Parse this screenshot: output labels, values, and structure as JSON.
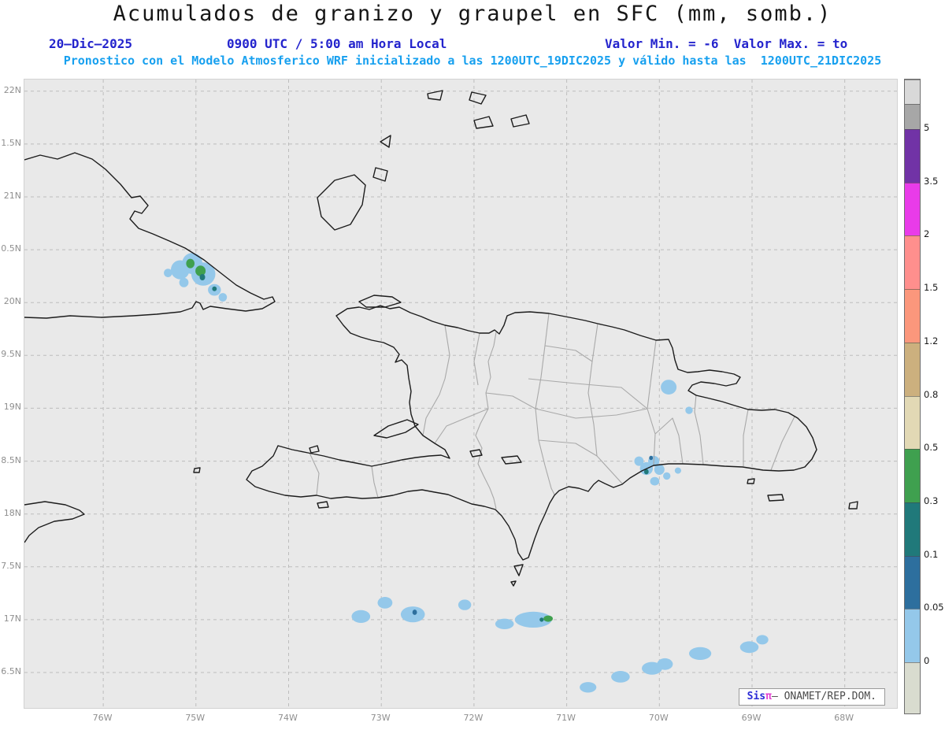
{
  "header": {
    "title": "Acumulados de granizo y graupel en SFC (mm, somb.)",
    "date": "20–Dic–2025",
    "time": "0900 UTC / 5:00 am Hora Local",
    "minmax": "Valor Min. = -6  Valor Max. = to",
    "forecast": "Pronostico con el Modelo Atmosferico WRF inicializado a las 1200UTC_19DIC2025 y válido hasta las  1200UTC_21DIC2025"
  },
  "axes": {
    "lat_labels": [
      "22N",
      "1.5N",
      "21N",
      "0.5N",
      "20N",
      "9.5N",
      "19N",
      "8.5N",
      "18N",
      "7.5N",
      "17N",
      "6.5N"
    ],
    "lat_values": [
      22,
      21.5,
      21,
      20.5,
      20,
      19.5,
      19,
      18.5,
      18,
      17.5,
      17,
      16.5
    ],
    "lon_labels": [
      "76W",
      "75W",
      "74W",
      "73W",
      "72W",
      "71W",
      "70W",
      "69W",
      "68W"
    ],
    "lon_values": [
      -76,
      -75,
      -74,
      -73,
      -72,
      -71,
      -70,
      -69,
      -68
    ]
  },
  "colorbar": {
    "labels": [
      "5",
      "3.5",
      "2",
      "1.5",
      "1.2",
      "0.8",
      "0.5",
      "0.3",
      "0.1",
      "0.05",
      "0"
    ],
    "segment_colors": [
      "#d9d9d9",
      "#a7a7a7",
      "#7133a6",
      "#e93be9",
      "#ff8f8d",
      "#fb977c",
      "#ccb07e",
      "#e2d9b5",
      "#3fa04f",
      "#20797a",
      "#2d6f9e",
      "#94c8ea",
      "#d9dccf"
    ],
    "level_colors": {
      "0": "#94c8ea",
      "0.05": "#2d6f9e",
      "0.1": "#20797a",
      "0.3": "#3fa04f"
    }
  },
  "credit": {
    "sis": "Sis",
    "pi": "π",
    "rest": "– ONAMET/REP.DOM."
  },
  "chart_data": {
    "type": "map",
    "variable": "Acumulados de granizo y graupel en SFC",
    "units": "mm",
    "projection": {
      "lon_min": -76.85,
      "lon_max": -67.42,
      "lat_min": 16.15,
      "lat_max": 22.11
    },
    "hail_areas": [
      {
        "lon": -75.3,
        "lat": 20.28,
        "rx": 0.045,
        "ry": 0.04,
        "level": "0"
      },
      {
        "lon": -75.17,
        "lat": 20.31,
        "rx": 0.1,
        "ry": 0.09,
        "level": "0"
      },
      {
        "lon": -75.04,
        "lat": 20.37,
        "rx": 0.11,
        "ry": 0.1,
        "level": "0"
      },
      {
        "lon": -74.92,
        "lat": 20.27,
        "rx": 0.13,
        "ry": 0.11,
        "level": "0"
      },
      {
        "lon": -75.13,
        "lat": 20.19,
        "rx": 0.05,
        "ry": 0.045,
        "level": "0"
      },
      {
        "lon": -74.8,
        "lat": 20.12,
        "rx": 0.07,
        "ry": 0.055,
        "level": "0"
      },
      {
        "lon": -74.71,
        "lat": 20.05,
        "rx": 0.045,
        "ry": 0.04,
        "level": "0"
      },
      {
        "lon": -75.06,
        "lat": 20.37,
        "rx": 0.045,
        "ry": 0.045,
        "level": "0.3"
      },
      {
        "lon": -74.95,
        "lat": 20.3,
        "rx": 0.055,
        "ry": 0.05,
        "level": "0.3"
      },
      {
        "lon": -74.93,
        "lat": 20.24,
        "rx": 0.03,
        "ry": 0.03,
        "level": "0.1"
      },
      {
        "lon": -74.8,
        "lat": 20.13,
        "rx": 0.025,
        "ry": 0.022,
        "level": "0.1"
      },
      {
        "lon": -69.9,
        "lat": 19.2,
        "rx": 0.085,
        "ry": 0.07,
        "level": "0"
      },
      {
        "lon": -69.68,
        "lat": 18.98,
        "rx": 0.04,
        "ry": 0.035,
        "level": "0"
      },
      {
        "lon": -70.22,
        "lat": 18.5,
        "rx": 0.05,
        "ry": 0.045,
        "level": "0"
      },
      {
        "lon": -70.14,
        "lat": 18.43,
        "rx": 0.07,
        "ry": 0.06,
        "level": "0"
      },
      {
        "lon": -70.06,
        "lat": 18.5,
        "rx": 0.06,
        "ry": 0.05,
        "level": "0"
      },
      {
        "lon": -70.0,
        "lat": 18.42,
        "rx": 0.055,
        "ry": 0.05,
        "level": "0"
      },
      {
        "lon": -70.05,
        "lat": 18.31,
        "rx": 0.05,
        "ry": 0.04,
        "level": "0"
      },
      {
        "lon": -69.92,
        "lat": 18.36,
        "rx": 0.04,
        "ry": 0.035,
        "level": "0"
      },
      {
        "lon": -69.8,
        "lat": 18.41,
        "rx": 0.035,
        "ry": 0.03,
        "level": "0"
      },
      {
        "lon": -70.14,
        "lat": 18.4,
        "rx": 0.025,
        "ry": 0.025,
        "level": "0.1"
      },
      {
        "lon": -70.09,
        "lat": 18.53,
        "rx": 0.02,
        "ry": 0.02,
        "level": "0.05"
      },
      {
        "lon": -73.22,
        "lat": 17.03,
        "rx": 0.1,
        "ry": 0.06,
        "level": "0"
      },
      {
        "lon": -72.96,
        "lat": 17.16,
        "rx": 0.08,
        "ry": 0.055,
        "level": "0"
      },
      {
        "lon": -72.66,
        "lat": 17.05,
        "rx": 0.13,
        "ry": 0.075,
        "level": "0"
      },
      {
        "lon": -72.64,
        "lat": 17.07,
        "rx": 0.025,
        "ry": 0.025,
        "level": "0.05"
      },
      {
        "lon": -72.1,
        "lat": 17.14,
        "rx": 0.07,
        "ry": 0.05,
        "level": "0"
      },
      {
        "lon": -71.67,
        "lat": 16.96,
        "rx": 0.1,
        "ry": 0.05,
        "level": "0"
      },
      {
        "lon": -71.36,
        "lat": 17.0,
        "rx": 0.2,
        "ry": 0.075,
        "level": "0"
      },
      {
        "lon": -71.2,
        "lat": 17.01,
        "rx": 0.05,
        "ry": 0.03,
        "level": "0.3"
      },
      {
        "lon": -71.27,
        "lat": 17.0,
        "rx": 0.022,
        "ry": 0.02,
        "level": "0.1"
      },
      {
        "lon": -70.77,
        "lat": 16.36,
        "rx": 0.09,
        "ry": 0.05,
        "level": "0"
      },
      {
        "lon": -70.42,
        "lat": 16.46,
        "rx": 0.1,
        "ry": 0.055,
        "level": "0"
      },
      {
        "lon": -70.08,
        "lat": 16.54,
        "rx": 0.11,
        "ry": 0.06,
        "level": "0"
      },
      {
        "lon": -69.94,
        "lat": 16.58,
        "rx": 0.085,
        "ry": 0.055,
        "level": "0"
      },
      {
        "lon": -69.56,
        "lat": 16.68,
        "rx": 0.12,
        "ry": 0.06,
        "level": "0"
      },
      {
        "lon": -69.03,
        "lat": 16.74,
        "rx": 0.1,
        "ry": 0.055,
        "level": "0"
      },
      {
        "lon": -68.89,
        "lat": 16.81,
        "rx": 0.065,
        "ry": 0.045,
        "level": "0"
      }
    ]
  }
}
